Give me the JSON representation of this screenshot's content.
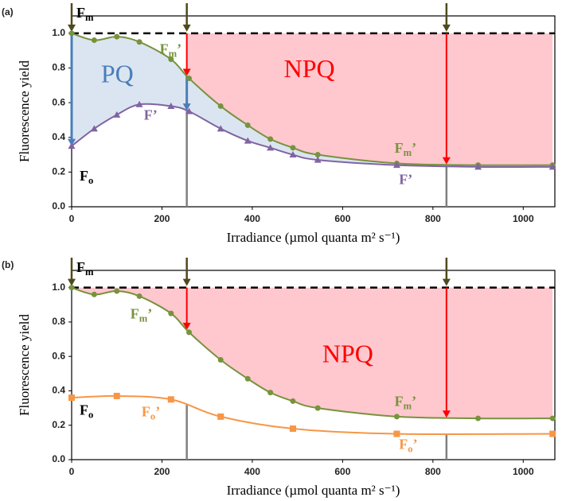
{
  "chart_data": [
    {
      "type": "line",
      "panel_label": "(a)",
      "ylabel": "Fluorescence yield",
      "xlabel": "Irradiance (µmol quanta m² s⁻¹)",
      "xlim": [
        0,
        1070
      ],
      "ylim": [
        0,
        1.1
      ],
      "xticks": [
        0,
        200,
        400,
        600,
        800,
        1000
      ],
      "yticks": [
        {
          "value": 0,
          "label": "0.0"
        },
        0.2,
        0.4,
        0.6,
        {
          "value": 0.8,
          "label": "0.8"
        },
        {
          "value": 1,
          "label": "1.0"
        }
      ],
      "reference_level": 1.0,
      "guide_x": [
        255,
        830
      ],
      "npq_start": 255,
      "pq_shade": true,
      "shade_colors": {
        "pq": "#dbe5f1",
        "npq": "#ffc7ce"
      },
      "annotations": {
        "fm": {
          "main": "F",
          "sub": "m"
        },
        "fo": {
          "main": "F",
          "sub": "o"
        },
        "pq": "PQ",
        "npq": "NPQ"
      },
      "series": [
        {
          "label": {
            "main": "F",
            "sub": "m",
            "mark": "’"
          },
          "color": "#77933c",
          "marker": "circle",
          "x": [
            0,
            50,
            100,
            150,
            220,
            260,
            330,
            390,
            440,
            490,
            545,
            720,
            900,
            1065
          ],
          "values": [
            1.0,
            0.96,
            0.98,
            0.95,
            0.85,
            0.74,
            0.58,
            0.47,
            0.39,
            0.34,
            0.3,
            0.25,
            0.24,
            0.24
          ]
        },
        {
          "label": {
            "main": "F",
            "mark": "’"
          },
          "color": "#8064a2",
          "marker": "triangle",
          "x": [
            0,
            50,
            100,
            150,
            220,
            260,
            330,
            390,
            440,
            490,
            545,
            720,
            900,
            1065
          ],
          "values": [
            0.35,
            0.45,
            0.53,
            0.59,
            0.58,
            0.55,
            0.45,
            0.38,
            0.34,
            0.3,
            0.27,
            0.24,
            0.23,
            0.23
          ]
        }
      ]
    },
    {
      "type": "line",
      "panel_label": "(b)",
      "ylabel": "Fluorescence yield",
      "xlabel": "Irradiance (µmol quanta m² s⁻¹)",
      "xlim": [
        0,
        1070
      ],
      "ylim": [
        0,
        1.1
      ],
      "xticks": [
        0,
        200,
        400,
        600,
        800,
        1000
      ],
      "yticks": [
        {
          "value": 0,
          "label": "0.0"
        },
        0.2,
        0.4,
        0.6,
        {
          "value": 0.8,
          "label": "0.8"
        },
        {
          "value": 1,
          "label": "1.0"
        }
      ],
      "reference_level": 1.0,
      "guide_x": [
        255,
        830
      ],
      "npq_start": 0,
      "pq_shade": false,
      "shade_colors": {
        "npq": "#ffc7ce"
      },
      "annotations": {
        "fm": {
          "main": "F",
          "sub": "m"
        },
        "fo": {
          "main": "F",
          "sub": "o"
        },
        "npq": "NPQ"
      },
      "series": [
        {
          "label": {
            "main": "F",
            "sub": "m",
            "mark": "’"
          },
          "color": "#77933c",
          "marker": "circle",
          "x": [
            0,
            50,
            100,
            150,
            220,
            260,
            330,
            390,
            440,
            490,
            545,
            720,
            900,
            1065
          ],
          "values": [
            1.0,
            0.96,
            0.98,
            0.95,
            0.85,
            0.74,
            0.58,
            0.47,
            0.39,
            0.34,
            0.3,
            0.25,
            0.24,
            0.24
          ]
        },
        {
          "label": {
            "main": "F",
            "sub": "o",
            "mark": "’"
          },
          "color": "#f79646",
          "marker": "square",
          "x": [
            0,
            100,
            220,
            330,
            490,
            720,
            1065
          ],
          "values": [
            0.36,
            0.37,
            0.35,
            0.25,
            0.18,
            0.15,
            0.15
          ]
        }
      ]
    }
  ]
}
